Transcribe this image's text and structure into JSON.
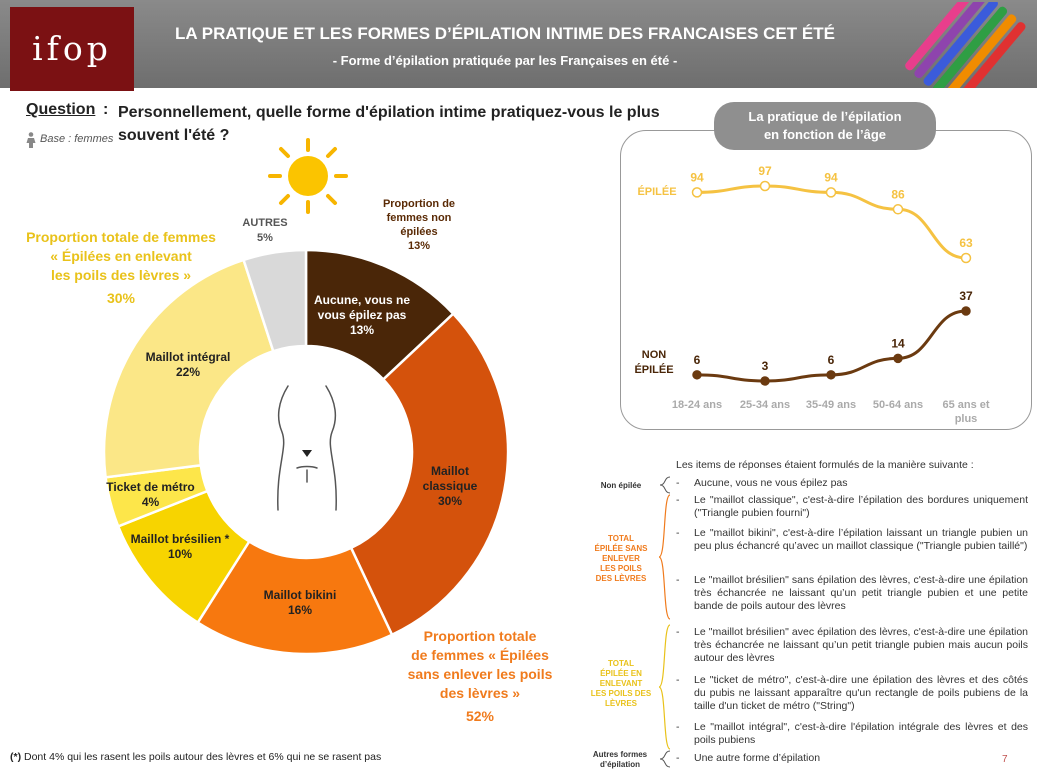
{
  "header": {
    "logo": "ifop",
    "title": "LA PRATIQUE ET LES FORMES D’ÉPILATION INTIME DES FRANCAISES CET ÉTÉ",
    "subtitle": "- Forme d’épilation pratiquée par les Françaises en été -"
  },
  "question": {
    "label": "Question",
    "colon": ":",
    "text": "Personnellement, quelle forme d'épilation intime pratiquez-vous le plus souvent l'été ?",
    "base": "Base : femmes"
  },
  "colors": {
    "epilee": "#f5c242",
    "non_epilee": "#6b3a10",
    "accent_orange": "#f07b1d",
    "accent_yellow": "#e9c21a"
  },
  "icons": [
    "sun-icon",
    "woman-icon",
    "body-outline-icon"
  ],
  "annotations": {
    "levres_total": [
      "Proportion totale de femmes",
      "« Épilées en enlevant",
      "les poils des lèvres »"
    ],
    "levres_value": "30%",
    "sans_total": [
      "Proportion totale",
      "de femmes « Épilées",
      "sans enlever les poils",
      "des lèvres »"
    ],
    "sans_value": "52%",
    "non_epilees": [
      "Proportion de",
      "femmes non",
      "épilées",
      "13%"
    ],
    "autres": [
      "AUTRES",
      "5%"
    ]
  },
  "chart_data": [
    {
      "type": "pie",
      "variant": "donut",
      "categories": [
        "Aucune, vous ne vous épilez pas",
        "Maillot classique",
        "Maillot bikini",
        "Maillot brésilien *",
        "Ticket de métro",
        "Maillot intégral",
        "AUTRES"
      ],
      "values": [
        13,
        30,
        16,
        10,
        4,
        22,
        5
      ],
      "labels": [
        {
          "name": "Aucune, vous ne vous épilez pas",
          "lines": [
            "Aucune, vous ne",
            "vous épilez pas"
          ],
          "value": "13%"
        },
        {
          "name": "Maillot classique",
          "lines": [
            "Maillot",
            "classique"
          ],
          "value": "30%"
        },
        {
          "name": "Maillot bikini",
          "lines": [
            "Maillot bikini"
          ],
          "value": "16%"
        },
        {
          "name": "Maillot brésilien *",
          "lines": [
            "Maillot brésilien *"
          ],
          "value": "10%"
        },
        {
          "name": "Ticket de métro",
          "lines": [
            "Ticket de métro"
          ],
          "value": "4%"
        },
        {
          "name": "Maillot intégral",
          "lines": [
            "Maillot intégral"
          ],
          "value": "22%"
        }
      ],
      "colors": [
        "#4a2608",
        "#d4520c",
        "#f7780f",
        "#f7d400",
        "#fde64a",
        "#fbe787",
        "#d9d9d9"
      ]
    },
    {
      "type": "line",
      "title": [
        "La pratique de l’épilation",
        "en fonction de l’âge"
      ],
      "categories": [
        "18-24 ans",
        "25-34 ans",
        "35-49 ans",
        "50-64 ans",
        "65 ans et plus"
      ],
      "category_lines": [
        [
          "18-24 ans"
        ],
        [
          "25-34 ans"
        ],
        [
          "35-49 ans"
        ],
        [
          "50-64 ans"
        ],
        [
          "65 ans et",
          "plus"
        ]
      ],
      "series": [
        {
          "name": "ÉPILÉE",
          "values": [
            94,
            97,
            94,
            86,
            63
          ],
          "color": "#f5c242"
        },
        {
          "name": "NON ÉPILÉE",
          "name_lines": [
            "NON",
            "ÉPILÉE"
          ],
          "values": [
            6,
            3,
            6,
            14,
            37
          ],
          "color": "#6b3a10"
        }
      ],
      "ylim": [
        0,
        100
      ]
    }
  ],
  "legend": {
    "intro": "Les items de réponses étaient formulés de la manière suivante :",
    "groups": [
      {
        "lines": [
          "Non épilée"
        ],
        "color": "#333"
      },
      {
        "lines": [
          "TOTAL",
          "ÉPILÉE SANS",
          "ENLEVER",
          "LES POILS",
          "DES LÈVRES"
        ],
        "color": "#f07b1d"
      },
      {
        "lines": [
          "TOTAL",
          "ÉPILÉE EN",
          "ENLEVANT",
          "LES POILS DES",
          "LÈVRES"
        ],
        "color": "#e9c21a"
      },
      {
        "lines": [
          "Autres formes",
          "d’épilation"
        ],
        "color": "#333"
      }
    ],
    "dash": "-",
    "items": [
      "Aucune, vous ne vous épilez pas",
      "Le \"maillot classique\", c'est-à-dire l’épilation des bordures uniquement (\"Triangle pubien fourni\")",
      "Le \"maillot bikini\", c'est-à-dire l’épilation laissant un triangle pubien un peu plus échancré qu’avec un maillot classique (\"Triangle pubien taillé\")",
      "Le \"maillot brésilien\" sans épilation des lèvres, c'est-à-dire une épilation très échancrée ne laissant qu’un petit triangle pubien et une petite bande de poils autour des lèvres",
      "Le \"maillot brésilien\" avec épilation des lèvres, c'est-à-dire une épilation très échancrée ne laissant qu’un petit triangle pubien mais aucun poils autour des lèvres",
      "Le \"ticket de métro\", c'est-à-dire une épilation des lèvres et des côtés du pubis ne laissant apparaître qu'un rectangle de poils pubiens de la taille d'un ticket de métro (\"String\")",
      "Le \"maillot intégral\", c'est-à-dire l'épilation intégrale des lèvres et des poils pubiens",
      "Une autre forme d’épilation"
    ]
  },
  "footnote": {
    "marker": "(*)",
    "text": " Dont 4% qui les rasent les poils autour des lèvres et 6% qui ne se rasent pas"
  },
  "page_number": "7"
}
